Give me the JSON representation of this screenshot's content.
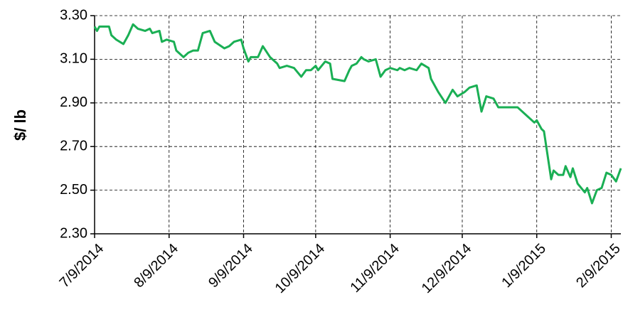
{
  "chart_data": {
    "type": "line",
    "y_label": "$/ lb",
    "xlim": [
      "2014-07-09",
      "2015-02-13"
    ],
    "xticks": [
      {
        "value": "2014-07-09",
        "label": "7/9/2014"
      },
      {
        "value": "2014-08-09",
        "label": "8/9/2014"
      },
      {
        "value": "2014-09-09",
        "label": "9/9/2014"
      },
      {
        "value": "2014-10-09",
        "label": "10/9/2014"
      },
      {
        "value": "2014-11-09",
        "label": "11/9/2014"
      },
      {
        "value": "2014-12-09",
        "label": "12/9/2014"
      },
      {
        "value": "2015-01-09",
        "label": "1/9/2015"
      },
      {
        "value": "2015-02-09",
        "label": "2/9/2015"
      }
    ],
    "ylim": [
      2.3,
      3.3
    ],
    "yticks": [
      {
        "value": 2.3,
        "label": "2.30"
      },
      {
        "value": 2.5,
        "label": "2.50"
      },
      {
        "value": 2.7,
        "label": "2.70"
      },
      {
        "value": 2.9,
        "label": "2.90"
      },
      {
        "value": 3.1,
        "label": "3.10"
      },
      {
        "value": 3.3,
        "label": "3.30"
      }
    ],
    "grid": true,
    "color": "#1aaf54",
    "x": [
      "2014-07-09",
      "2014-07-10",
      "2014-07-11",
      "2014-07-15",
      "2014-07-16",
      "2014-07-18",
      "2014-07-21",
      "2014-07-23",
      "2014-07-25",
      "2014-07-27",
      "2014-07-30",
      "2014-08-01",
      "2014-08-02",
      "2014-08-05",
      "2014-08-06",
      "2014-08-08",
      "2014-08-11",
      "2014-08-12",
      "2014-08-15",
      "2014-08-17",
      "2014-08-19",
      "2014-08-21",
      "2014-08-23",
      "2014-08-26",
      "2014-08-28",
      "2014-09-01",
      "2014-09-03",
      "2014-09-05",
      "2014-09-08",
      "2014-09-09",
      "2014-09-11",
      "2014-09-12",
      "2014-09-15",
      "2014-09-17",
      "2014-09-20",
      "2014-09-23",
      "2014-09-24",
      "2014-09-27",
      "2014-09-30",
      "2014-10-03",
      "2014-10-05",
      "2014-10-07",
      "2014-10-09",
      "2014-10-10",
      "2014-10-13",
      "2014-10-15",
      "2014-10-16",
      "2014-10-21",
      "2014-10-23",
      "2014-10-24",
      "2014-10-26",
      "2014-10-28",
      "2014-10-29",
      "2014-10-31",
      "2014-11-03",
      "2014-11-05",
      "2014-11-07",
      "2014-11-09",
      "2014-11-12",
      "2014-11-13",
      "2014-11-15",
      "2014-11-17",
      "2014-11-20",
      "2014-11-22",
      "2014-11-25",
      "2014-11-26",
      "2014-11-29",
      "2014-12-02",
      "2014-12-04",
      "2014-12-05",
      "2014-12-07",
      "2014-12-10",
      "2014-12-12",
      "2014-12-15",
      "2014-12-17",
      "2014-12-19",
      "2014-12-22",
      "2014-12-24",
      "2014-12-29",
      "2015-01-01",
      "2015-01-05",
      "2015-01-08",
      "2015-01-09",
      "2015-01-11",
      "2015-01-12",
      "2015-01-15",
      "2015-01-16",
      "2015-01-18",
      "2015-01-20",
      "2015-01-21",
      "2015-01-23",
      "2015-01-24",
      "2015-01-26",
      "2015-01-29",
      "2015-01-30",
      "2015-02-01",
      "2015-02-03",
      "2015-02-05",
      "2015-02-07",
      "2015-02-09",
      "2015-02-11",
      "2015-02-13"
    ],
    "values": [
      3.25,
      3.23,
      3.25,
      3.25,
      3.21,
      3.19,
      3.17,
      3.21,
      3.26,
      3.24,
      3.23,
      3.24,
      3.22,
      3.23,
      3.18,
      3.19,
      3.18,
      3.14,
      3.11,
      3.13,
      3.14,
      3.14,
      3.22,
      3.23,
      3.18,
      3.15,
      3.16,
      3.18,
      3.19,
      3.15,
      3.09,
      3.11,
      3.11,
      3.16,
      3.11,
      3.08,
      3.06,
      3.07,
      3.06,
      3.02,
      3.05,
      3.05,
      3.07,
      3.05,
      3.09,
      3.08,
      3.01,
      3.0,
      3.05,
      3.07,
      3.08,
      3.11,
      3.1,
      3.09,
      3.1,
      3.02,
      3.05,
      3.06,
      3.05,
      3.06,
      3.05,
      3.06,
      3.05,
      3.08,
      3.06,
      3.01,
      2.95,
      2.9,
      2.94,
      2.96,
      2.93,
      2.95,
      2.97,
      2.98,
      2.86,
      2.93,
      2.92,
      2.88,
      2.88,
      2.88,
      2.84,
      2.81,
      2.82,
      2.78,
      2.77,
      2.55,
      2.59,
      2.57,
      2.57,
      2.61,
      2.56,
      2.6,
      2.53,
      2.49,
      2.51,
      2.44,
      2.5,
      2.51,
      2.58,
      2.57,
      2.54,
      2.6
    ]
  }
}
